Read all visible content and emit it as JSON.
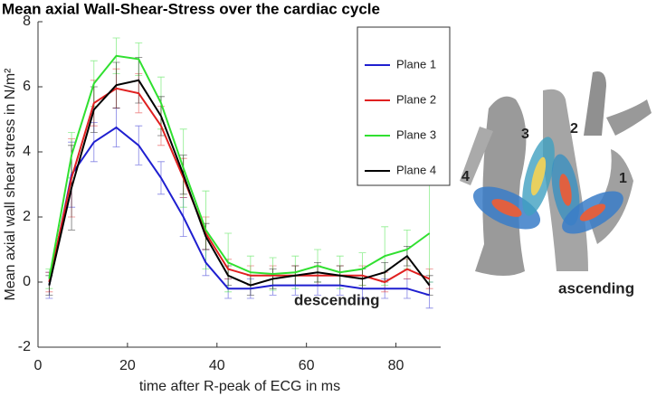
{
  "chart_data": {
    "type": "line",
    "title": "Mean axial Wall-Shear-Stress over the cardiac cycle",
    "ylabel": "Mean axial wall shear stress in N/m²",
    "xlabel": "time after R-peak of ECG in ms",
    "x": [
      2.5,
      7.5,
      12.5,
      17.5,
      22.5,
      27.5,
      32.5,
      37.5,
      42.5,
      47.5,
      52.5,
      57.5,
      62.5,
      67.5,
      72.5,
      77.5,
      82.5,
      87.5
    ],
    "series": [
      {
        "name": "Plane 1",
        "color": "#1f1fd0",
        "values": [
          -0.1,
          3.3,
          4.3,
          4.75,
          4.2,
          3.2,
          2.0,
          0.6,
          -0.2,
          -0.2,
          -0.1,
          -0.1,
          -0.1,
          -0.1,
          -0.2,
          -0.2,
          -0.2,
          -0.4
        ],
        "errors": [
          0.4,
          1.0,
          0.6,
          0.6,
          0.6,
          0.5,
          0.6,
          0.4,
          0.3,
          0.3,
          0.3,
          0.3,
          0.3,
          0.3,
          0.3,
          0.3,
          0.3,
          0.4
        ]
      },
      {
        "name": "Plane 2",
        "color": "#e02020",
        "values": [
          0.0,
          3.2,
          5.5,
          5.95,
          5.8,
          4.8,
          3.2,
          1.5,
          0.4,
          0.2,
          0.2,
          0.2,
          0.2,
          0.2,
          0.2,
          0.0,
          0.4,
          0.1
        ],
        "errors": [
          0.3,
          1.2,
          0.7,
          0.6,
          0.6,
          0.6,
          0.6,
          0.5,
          0.3,
          0.3,
          0.3,
          0.3,
          0.3,
          0.3,
          0.3,
          0.3,
          0.3,
          0.3
        ]
      },
      {
        "name": "Plane 3",
        "color": "#30e030",
        "values": [
          0.1,
          3.9,
          6.1,
          6.95,
          6.85,
          5.5,
          3.5,
          1.6,
          0.6,
          0.3,
          0.25,
          0.3,
          0.5,
          0.3,
          0.4,
          0.8,
          1.0,
          1.5
        ],
        "errors": [
          0.3,
          0.7,
          0.7,
          0.55,
          0.5,
          0.8,
          1.2,
          1.2,
          0.9,
          0.5,
          0.5,
          0.5,
          0.5,
          0.5,
          0.5,
          0.9,
          0.6,
          1.5
        ]
      },
      {
        "name": "Plane 4",
        "color": "#000000",
        "values": [
          -0.1,
          2.9,
          5.3,
          6.05,
          6.2,
          5.1,
          3.3,
          1.4,
          0.2,
          -0.1,
          0.1,
          0.2,
          0.3,
          0.2,
          0.1,
          0.3,
          0.8,
          -0.1
        ],
        "errors": [
          0.3,
          1.3,
          0.7,
          0.7,
          0.7,
          0.6,
          0.6,
          0.4,
          0.3,
          0.3,
          0.3,
          0.3,
          0.3,
          0.3,
          0.3,
          0.3,
          0.3,
          0.3
        ]
      }
    ],
    "xlim": [
      0,
      90
    ],
    "xticks": [
      0,
      20,
      40,
      60,
      80
    ],
    "ylim": [
      -2,
      8
    ],
    "yticks": [
      -2,
      0,
      2,
      4,
      6,
      8
    ],
    "grid": false,
    "legend": "upper right"
  },
  "figure": {
    "labels": [
      "1",
      "2",
      "3",
      "4",
      "descending",
      "ascending"
    ]
  }
}
